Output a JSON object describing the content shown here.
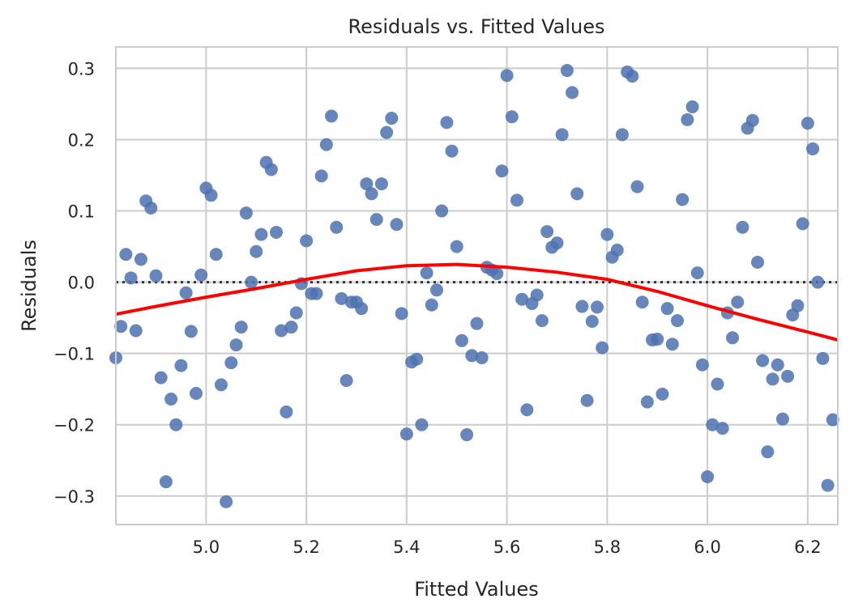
{
  "chart_data": {
    "type": "scatter",
    "title": "Residuals vs. Fitted Values",
    "xlabel": "Fitted Values",
    "ylabel": "Residuals",
    "xlim": [
      4.82,
      6.26
    ],
    "ylim": [
      -0.34,
      0.33
    ],
    "x_ticks": [
      5.0,
      5.2,
      5.4,
      5.6,
      5.8,
      6.0,
      6.2
    ],
    "x_tick_labels": [
      "5.0",
      "5.2",
      "5.4",
      "5.6",
      "5.8",
      "6.0",
      "6.2"
    ],
    "y_ticks": [
      -0.3,
      -0.2,
      -0.1,
      0.0,
      0.1,
      0.2,
      0.3
    ],
    "y_tick_labels": [
      "−0.3",
      "−0.2",
      "−0.1",
      "0.0",
      "0.1",
      "0.2",
      "0.3"
    ],
    "grid": true,
    "colors": {
      "points": "#4c72b0",
      "trend": "#ff0000",
      "reference_line": "#333333",
      "grid": "#cccccc"
    },
    "reference_line_y": 0.0,
    "points": [
      [
        4.82,
        -0.106
      ],
      [
        4.83,
        -0.062
      ],
      [
        4.84,
        0.039
      ],
      [
        4.85,
        0.006
      ],
      [
        4.86,
        -0.068
      ],
      [
        4.87,
        0.032
      ],
      [
        4.88,
        0.114
      ],
      [
        4.89,
        0.104
      ],
      [
        4.9,
        0.009
      ],
      [
        4.91,
        -0.134
      ],
      [
        4.92,
        -0.28
      ],
      [
        4.93,
        -0.164
      ],
      [
        4.94,
        -0.2
      ],
      [
        4.95,
        -0.117
      ],
      [
        4.96,
        -0.015
      ],
      [
        4.97,
        -0.069
      ],
      [
        4.98,
        -0.156
      ],
      [
        4.99,
        0.01
      ],
      [
        5.0,
        0.132
      ],
      [
        5.01,
        0.122
      ],
      [
        5.02,
        0.039
      ],
      [
        5.03,
        -0.144
      ],
      [
        5.04,
        -0.308
      ],
      [
        5.05,
        -0.113
      ],
      [
        5.06,
        -0.088
      ],
      [
        5.07,
        -0.063
      ],
      [
        5.08,
        0.097
      ],
      [
        5.09,
        0.0
      ],
      [
        5.1,
        0.043
      ],
      [
        5.11,
        0.067
      ],
      [
        5.12,
        0.168
      ],
      [
        5.13,
        0.158
      ],
      [
        5.14,
        0.07
      ],
      [
        5.15,
        -0.068
      ],
      [
        5.16,
        -0.182
      ],
      [
        5.17,
        -0.063
      ],
      [
        5.18,
        -0.043
      ],
      [
        5.19,
        -0.002
      ],
      [
        5.2,
        0.058
      ],
      [
        5.21,
        -0.016
      ],
      [
        5.22,
        -0.016
      ],
      [
        5.23,
        0.149
      ],
      [
        5.24,
        0.193
      ],
      [
        5.25,
        0.233
      ],
      [
        5.26,
        0.077
      ],
      [
        5.27,
        -0.023
      ],
      [
        5.28,
        -0.138
      ],
      [
        5.29,
        -0.028
      ],
      [
        5.3,
        -0.028
      ],
      [
        5.31,
        -0.037
      ],
      [
        5.32,
        0.138
      ],
      [
        5.33,
        0.124
      ],
      [
        5.34,
        0.088
      ],
      [
        5.35,
        0.138
      ],
      [
        5.36,
        0.21
      ],
      [
        5.37,
        0.23
      ],
      [
        5.38,
        0.081
      ],
      [
        5.39,
        -0.044
      ],
      [
        5.4,
        -0.213
      ],
      [
        5.41,
        -0.112
      ],
      [
        5.42,
        -0.108
      ],
      [
        5.43,
        -0.2
      ],
      [
        5.44,
        0.013
      ],
      [
        5.45,
        -0.032
      ],
      [
        5.46,
        -0.011
      ],
      [
        5.47,
        0.1
      ],
      [
        5.48,
        0.224
      ],
      [
        5.49,
        0.184
      ],
      [
        5.5,
        0.05
      ],
      [
        5.51,
        -0.082
      ],
      [
        5.52,
        -0.214
      ],
      [
        5.53,
        -0.103
      ],
      [
        5.54,
        -0.058
      ],
      [
        5.55,
        -0.106
      ],
      [
        5.56,
        0.021
      ],
      [
        5.57,
        0.017
      ],
      [
        5.58,
        0.012
      ],
      [
        5.59,
        0.156
      ],
      [
        5.6,
        0.29
      ],
      [
        5.61,
        0.232
      ],
      [
        5.62,
        0.115
      ],
      [
        5.63,
        -0.024
      ],
      [
        5.64,
        -0.179
      ],
      [
        5.65,
        -0.03
      ],
      [
        5.66,
        -0.018
      ],
      [
        5.67,
        -0.054
      ],
      [
        5.68,
        0.071
      ],
      [
        5.69,
        0.049
      ],
      [
        5.7,
        0.055
      ],
      [
        5.71,
        0.207
      ],
      [
        5.72,
        0.297
      ],
      [
        5.73,
        0.266
      ],
      [
        5.74,
        0.124
      ],
      [
        5.75,
        -0.034
      ],
      [
        5.76,
        -0.166
      ],
      [
        5.77,
        -0.055
      ],
      [
        5.78,
        -0.035
      ],
      [
        5.79,
        -0.092
      ],
      [
        5.8,
        0.067
      ],
      [
        5.81,
        0.035
      ],
      [
        5.82,
        0.045
      ],
      [
        5.83,
        0.207
      ],
      [
        5.84,
        0.295
      ],
      [
        5.85,
        0.289
      ],
      [
        5.86,
        0.134
      ],
      [
        5.87,
        -0.028
      ],
      [
        5.88,
        -0.168
      ],
      [
        5.89,
        -0.081
      ],
      [
        5.9,
        -0.08
      ],
      [
        5.91,
        -0.157
      ],
      [
        5.92,
        -0.037
      ],
      [
        5.93,
        -0.087
      ],
      [
        5.94,
        -0.054
      ],
      [
        5.95,
        0.116
      ],
      [
        5.96,
        0.228
      ],
      [
        5.97,
        0.246
      ],
      [
        5.98,
        0.013
      ],
      [
        5.99,
        -0.116
      ],
      [
        6.0,
        -0.273
      ],
      [
        6.01,
        -0.2
      ],
      [
        6.02,
        -0.143
      ],
      [
        6.03,
        -0.205
      ],
      [
        6.04,
        -0.043
      ],
      [
        6.05,
        -0.078
      ],
      [
        6.06,
        -0.028
      ],
      [
        6.07,
        0.077
      ],
      [
        6.08,
        0.216
      ],
      [
        6.09,
        0.227
      ],
      [
        6.1,
        0.028
      ],
      [
        6.11,
        -0.11
      ],
      [
        6.12,
        -0.238
      ],
      [
        6.13,
        -0.136
      ],
      [
        6.14,
        -0.116
      ],
      [
        6.15,
        -0.192
      ],
      [
        6.16,
        -0.132
      ],
      [
        6.17,
        -0.046
      ],
      [
        6.18,
        -0.033
      ],
      [
        6.19,
        0.082
      ],
      [
        6.2,
        0.223
      ],
      [
        6.21,
        0.187
      ],
      [
        6.22,
        0.0
      ],
      [
        6.23,
        -0.107
      ],
      [
        6.24,
        -0.285
      ],
      [
        6.25,
        -0.193
      ]
    ],
    "trend": {
      "x": [
        4.82,
        4.9,
        5.0,
        5.1,
        5.2,
        5.3,
        5.4,
        5.5,
        5.6,
        5.7,
        5.8,
        5.9,
        6.0,
        6.1,
        6.2,
        6.26
      ],
      "y": [
        -0.045,
        -0.034,
        -0.021,
        -0.009,
        0.004,
        0.016,
        0.023,
        0.025,
        0.021,
        0.014,
        0.004,
        -0.013,
        -0.033,
        -0.052,
        -0.07,
        -0.081
      ]
    }
  }
}
